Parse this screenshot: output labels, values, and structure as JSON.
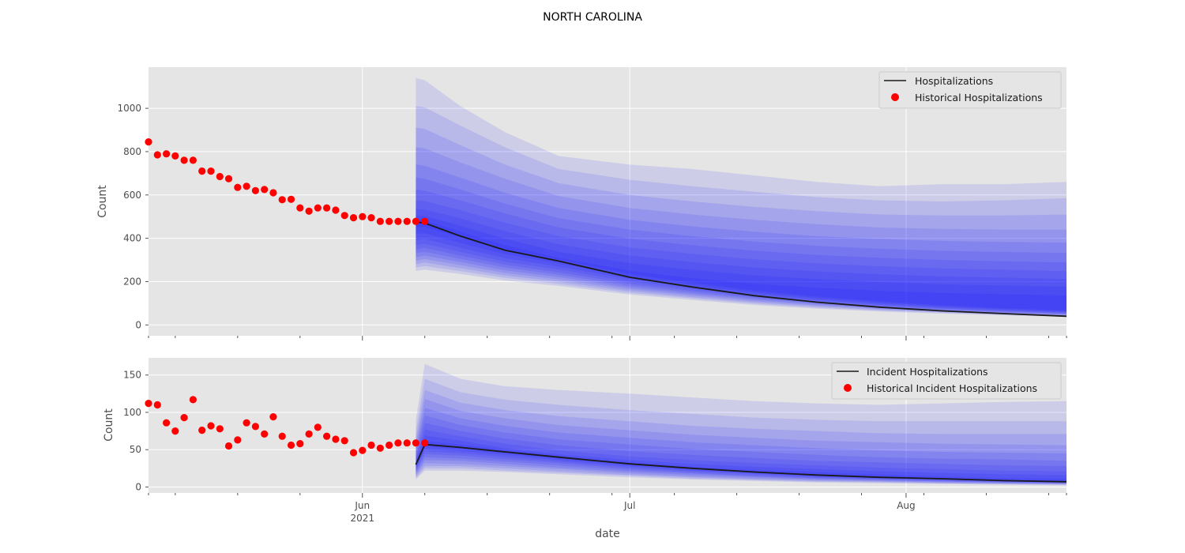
{
  "figure": {
    "title": "NORTH CAROLINA",
    "xlabel": "date"
  },
  "colors": {
    "background": "#e5e5e5",
    "grid": "#ffffff",
    "median_line": "#1a1a1a",
    "historical": "#ff0000",
    "band": "#0000ff"
  },
  "chart_data": [
    {
      "type": "line",
      "ylabel": "Count",
      "xlim": [
        "2021-05-08",
        "2021-08-19"
      ],
      "ylim": [
        -50,
        1190
      ],
      "yticks": [
        0,
        200,
        400,
        600,
        800,
        1000
      ],
      "legend_placement": "top-right",
      "grid": true,
      "forecast_start": "2021-06-07",
      "forecast_dates": [
        "2021-06-07",
        "2021-06-08",
        "2021-06-12",
        "2021-06-17",
        "2021-06-23",
        "2021-07-01",
        "2021-07-08",
        "2021-07-15",
        "2021-07-22",
        "2021-07-29",
        "2021-08-05",
        "2021-08-12",
        "2021-08-19"
      ],
      "series": [
        {
          "name": "Hospitalizations",
          "kind": "line",
          "x": [
            "2021-06-07",
            "2021-06-08",
            "2021-06-12",
            "2021-06-17",
            "2021-06-23",
            "2021-07-01",
            "2021-07-08",
            "2021-07-15",
            "2021-07-22",
            "2021-07-29",
            "2021-08-05",
            "2021-08-12",
            "2021-08-19"
          ],
          "y": [
            475,
            470,
            410,
            345,
            295,
            220,
            175,
            135,
            105,
            82,
            65,
            52,
            40
          ]
        },
        {
          "name": "Historical Hospitalizations",
          "kind": "scatter",
          "x": [
            "2021-05-08",
            "2021-05-09",
            "2021-05-10",
            "2021-05-11",
            "2021-05-12",
            "2021-05-13",
            "2021-05-14",
            "2021-05-15",
            "2021-05-16",
            "2021-05-17",
            "2021-05-18",
            "2021-05-19",
            "2021-05-20",
            "2021-05-21",
            "2021-05-22",
            "2021-05-23",
            "2021-05-24",
            "2021-05-25",
            "2021-05-26",
            "2021-05-27",
            "2021-05-28",
            "2021-05-29",
            "2021-05-30",
            "2021-05-31",
            "2021-06-01",
            "2021-06-02",
            "2021-06-03",
            "2021-06-04",
            "2021-06-05",
            "2021-06-06",
            "2021-06-07",
            "2021-06-08"
          ],
          "y": [
            845,
            785,
            790,
            780,
            760,
            760,
            710,
            710,
            685,
            675,
            635,
            640,
            620,
            625,
            610,
            578,
            580,
            540,
            525,
            540,
            540,
            530,
            505,
            495,
            500,
            495,
            478,
            478,
            478,
            478,
            478,
            478
          ]
        }
      ],
      "bands": {
        "lower": [
          [
            250,
            255,
            235,
            205,
            180,
            140,
            115,
            92,
            75,
            62,
            52,
            44,
            38
          ],
          [
            265,
            272,
            248,
            217,
            190,
            148,
            122,
            98,
            80,
            66,
            56,
            47,
            40
          ],
          [
            280,
            288,
            262,
            228,
            200,
            156,
            128,
            104,
            85,
            70,
            59,
            50,
            42
          ],
          [
            296,
            304,
            276,
            240,
            210,
            164,
            135,
            110,
            90,
            74,
            62,
            53,
            45
          ],
          [
            312,
            320,
            290,
            252,
            221,
            172,
            142,
            116,
            95,
            78,
            66,
            56,
            47
          ],
          [
            330,
            338,
            305,
            265,
            232,
            181,
            149,
            122,
            100,
            82,
            69,
            59,
            50
          ],
          [
            348,
            356,
            320,
            278,
            243,
            190,
            157,
            128,
            105,
            87,
            73,
            62,
            53
          ],
          [
            368,
            375,
            337,
            292,
            256,
            200,
            165,
            135,
            111,
            92,
            77,
            65,
            56
          ],
          [
            392,
            397,
            356,
            308,
            270,
            211,
            174,
            142,
            117,
            97,
            81,
            69,
            59
          ],
          [
            420,
            423,
            378,
            326,
            285,
            222,
            183,
            150,
            124,
            103,
            86,
            73,
            62
          ],
          [
            452,
            452,
            404,
            345,
            302,
            235,
            194,
            159,
            131,
            109,
            91,
            77,
            66
          ]
        ],
        "upper": [
          [
            1140,
            1130,
            1010,
            890,
            780,
            740,
            720,
            690,
            660,
            640,
            650,
            650,
            660
          ],
          [
            1010,
            1005,
            920,
            820,
            720,
            670,
            640,
            615,
            590,
            575,
            570,
            575,
            585
          ],
          [
            910,
            905,
            830,
            740,
            655,
            600,
            570,
            545,
            525,
            510,
            505,
            505,
            510
          ],
          [
            820,
            815,
            750,
            675,
            595,
            540,
            510,
            485,
            465,
            450,
            443,
            440,
            440
          ],
          [
            740,
            735,
            680,
            610,
            540,
            485,
            455,
            430,
            410,
            397,
            388,
            383,
            380
          ],
          [
            680,
            675,
            625,
            560,
            493,
            440,
            410,
            385,
            365,
            352,
            342,
            337,
            332
          ],
          [
            625,
            620,
            575,
            515,
            450,
            398,
            368,
            343,
            323,
            310,
            300,
            294,
            288
          ],
          [
            575,
            572,
            530,
            472,
            410,
            358,
            328,
            303,
            284,
            271,
            261,
            255,
            248
          ],
          [
            535,
            532,
            492,
            433,
            372,
            320,
            290,
            265,
            247,
            234,
            224,
            218,
            212
          ],
          [
            505,
            502,
            458,
            398,
            338,
            285,
            254,
            229,
            211,
            198,
            188,
            182,
            176
          ],
          [
            486,
            483,
            430,
            368,
            310,
            250,
            216,
            190,
            172,
            158,
            148,
            142,
            136
          ]
        ]
      }
    },
    {
      "type": "line",
      "ylabel": "Count",
      "xlim": [
        "2021-05-08",
        "2021-08-19"
      ],
      "ylim": [
        -8,
        173
      ],
      "yticks": [
        0,
        50,
        100,
        150
      ],
      "legend_placement": "top-right",
      "grid": true,
      "forecast_start": "2021-06-07",
      "forecast_dates": [
        "2021-06-07",
        "2021-06-08",
        "2021-06-12",
        "2021-06-17",
        "2021-06-23",
        "2021-07-01",
        "2021-07-08",
        "2021-07-15",
        "2021-07-22",
        "2021-07-29",
        "2021-08-05",
        "2021-08-12",
        "2021-08-19"
      ],
      "series": [
        {
          "name": "Incident Hospitalizations",
          "kind": "line",
          "x": [
            "2021-06-07",
            "2021-06-08",
            "2021-06-12",
            "2021-06-17",
            "2021-06-23",
            "2021-07-01",
            "2021-07-08",
            "2021-07-15",
            "2021-07-22",
            "2021-07-29",
            "2021-08-05",
            "2021-08-12",
            "2021-08-19"
          ],
          "y": [
            30,
            57,
            53,
            47,
            40,
            31,
            25,
            20,
            16,
            13,
            11,
            8.5,
            7
          ]
        },
        {
          "name": "Historical Incident Hospitalizations",
          "kind": "scatter",
          "x": [
            "2021-05-08",
            "2021-05-09",
            "2021-05-10",
            "2021-05-11",
            "2021-05-12",
            "2021-05-13",
            "2021-05-14",
            "2021-05-15",
            "2021-05-16",
            "2021-05-17",
            "2021-05-18",
            "2021-05-19",
            "2021-05-20",
            "2021-05-21",
            "2021-05-22",
            "2021-05-23",
            "2021-05-24",
            "2021-05-25",
            "2021-05-26",
            "2021-05-27",
            "2021-05-28",
            "2021-05-29",
            "2021-05-30",
            "2021-05-31",
            "2021-06-01",
            "2021-06-02",
            "2021-06-03",
            "2021-06-04",
            "2021-06-05",
            "2021-06-06",
            "2021-06-07",
            "2021-06-08"
          ],
          "y": [
            112,
            110,
            86,
            75,
            93,
            117,
            76,
            82,
            78,
            55,
            63,
            86,
            81,
            71,
            94,
            68,
            56,
            58,
            71,
            80,
            68,
            64,
            62,
            46,
            49,
            56,
            52,
            56,
            59,
            59,
            59,
            59
          ]
        }
      ],
      "bands": {
        "lower": [
          [
            10,
            22,
            22,
            20,
            17,
            13,
            10,
            8,
            6,
            5,
            4,
            3,
            2
          ],
          [
            12,
            25,
            25,
            22,
            19,
            15,
            11,
            9,
            7,
            6,
            5,
            4,
            3
          ],
          [
            14,
            28,
            28,
            25,
            21,
            16,
            13,
            10,
            8,
            7,
            5,
            4,
            3.5
          ],
          [
            16,
            32,
            31,
            28,
            24,
            18,
            14,
            11,
            9,
            7.5,
            6,
            5,
            4
          ],
          [
            18,
            36,
            35,
            31,
            26,
            20,
            16,
            13,
            10,
            8.5,
            7,
            5.5,
            4.5
          ],
          [
            20,
            40,
            38,
            34,
            29,
            22,
            18,
            14,
            11,
            9.5,
            7.5,
            6,
            5
          ],
          [
            22,
            44,
            42,
            37,
            32,
            24,
            19,
            15,
            12,
            10,
            8,
            6.5,
            5.5
          ],
          [
            24,
            48,
            45,
            40,
            34,
            26,
            21,
            17,
            13,
            11,
            9,
            7,
            6
          ],
          [
            26,
            51,
            48,
            43,
            36,
            28,
            22,
            18,
            14,
            12,
            10,
            7.5,
            6.5
          ],
          [
            28,
            54,
            51,
            45,
            38,
            30,
            24,
            19,
            15,
            12.5,
            10.5,
            8,
            6.8
          ]
        ],
        "upper": [
          [
            90,
            165,
            145,
            135,
            130,
            125,
            120,
            115,
            112,
            110,
            112,
            114,
            115
          ],
          [
            75,
            145,
            127,
            117,
            110,
            103,
            98,
            93,
            90,
            88,
            88,
            88,
            88
          ],
          [
            65,
            130,
            113,
            103,
            95,
            88,
            82,
            78,
            75,
            72,
            71,
            71,
            71
          ],
          [
            57,
            118,
            102,
            92,
            83,
            76,
            70,
            66,
            62,
            60,
            58,
            57,
            56
          ],
          [
            50,
            106,
            92,
            82,
            73,
            66,
            60,
            56,
            52,
            49,
            47,
            46,
            45
          ],
          [
            45,
            96,
            83,
            73,
            64,
            57,
            51,
            47,
            43,
            40,
            38,
            37,
            35
          ],
          [
            40,
            86,
            75,
            65,
            56,
            48,
            43,
            39,
            35,
            33,
            31,
            29,
            28
          ],
          [
            36,
            77,
            68,
            58,
            49,
            41,
            36,
            32,
            29,
            26,
            24,
            22,
            21
          ],
          [
            33,
            69,
            62,
            52,
            44,
            36,
            31,
            27,
            24,
            21,
            19,
            17,
            16
          ],
          [
            31,
            62,
            57,
            50,
            42,
            33,
            27,
            23,
            20,
            17,
            14,
            12,
            11
          ]
        ]
      }
    }
  ],
  "xaxis": {
    "major_ticks": [
      {
        "date": "2021-06-01",
        "label": "Jun",
        "sub": "2021"
      },
      {
        "date": "2021-07-01",
        "label": "Jul",
        "sub": ""
      },
      {
        "date": "2021-08-01",
        "label": "Aug",
        "sub": ""
      }
    ],
    "minor_tick_dates": [
      "2021-05-08",
      "2021-05-11",
      "2021-05-18",
      "2021-05-25",
      "2021-06-08",
      "2021-06-15",
      "2021-06-22",
      "2021-06-29",
      "2021-07-06",
      "2021-07-13",
      "2021-07-20",
      "2021-07-27",
      "2021-08-03",
      "2021-08-10",
      "2021-08-17",
      "2021-08-19"
    ]
  }
}
